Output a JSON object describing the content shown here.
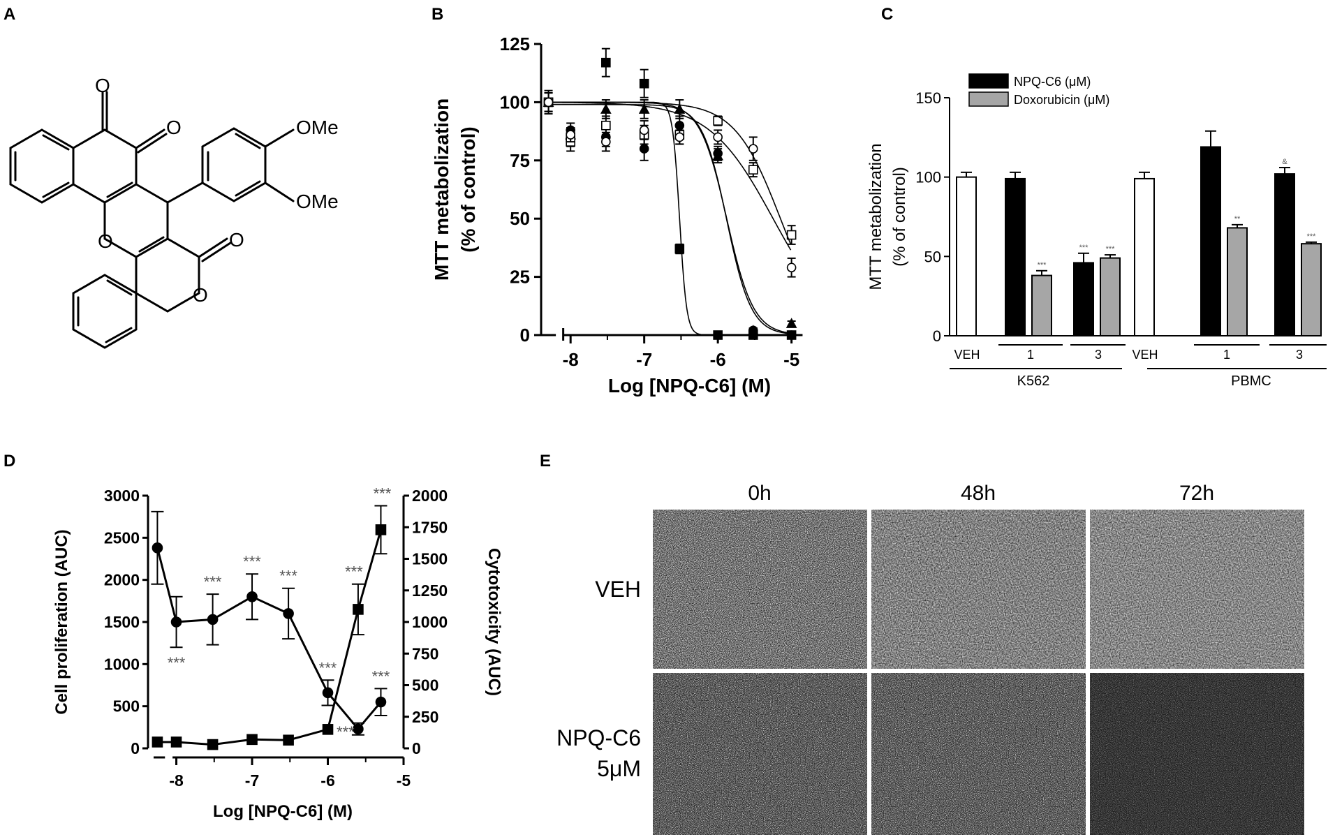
{
  "panels": {
    "A": {
      "letter": "A",
      "molecule": {
        "labels": [
          "O",
          "O",
          "OMe",
          "OMe",
          "O",
          "O",
          "O"
        ]
      }
    },
    "B": {
      "letter": "B"
    },
    "C": {
      "letter": "C"
    },
    "D": {
      "letter": "D"
    },
    "E": {
      "letter": "E",
      "time_labels": [
        "0h",
        "48h",
        "72h"
      ],
      "row_labels": [
        [
          "VEH"
        ],
        [
          "NPQ-C6",
          "5μM"
        ]
      ]
    }
  },
  "chart_data": [
    {
      "panel": "B",
      "type": "scatter",
      "xlabel": "Log [NPQ-C6] (M)",
      "ylabel": [
        "MTT metabolization",
        "(% of control)"
      ],
      "xlim": [
        -8.4,
        -4.75
      ],
      "ylim": [
        0,
        125
      ],
      "xticks": [
        -8,
        -7,
        -6,
        -5
      ],
      "yticks": [
        0,
        25,
        50,
        75,
        100,
        125
      ],
      "x": [
        -8.3,
        -8.0,
        -7.52,
        -7.0,
        -6.52,
        -6.0,
        -5.52,
        -5.0
      ],
      "series": [
        {
          "marker": "filled-square",
          "values": [
            100,
            85,
            117,
            108,
            37,
            0,
            0,
            0
          ],
          "errors": [
            5,
            4,
            6,
            6,
            2,
            0,
            0,
            0
          ],
          "ic50_log": -6.52,
          "top": 100,
          "hill": 9
        },
        {
          "marker": "filled-circle",
          "values": [
            100,
            88,
            85,
            80,
            90,
            78,
            2,
            0
          ],
          "errors": [
            4,
            3,
            4,
            5,
            4,
            3,
            1,
            0
          ],
          "ic50_log": -5.88,
          "top": 100,
          "hill": 2.4
        },
        {
          "marker": "filled-triangle",
          "values": [
            100,
            86,
            97,
            97,
            97,
            77,
            2,
            5
          ],
          "errors": [
            4,
            3,
            4,
            4,
            4,
            3,
            1,
            1
          ],
          "ic50_log": -5.88,
          "top": 99,
          "hill": 2.6
        },
        {
          "marker": "open-square",
          "values": [
            100,
            83,
            90,
            86,
            86,
            92,
            71,
            43
          ],
          "errors": [
            4,
            4,
            4,
            4,
            4,
            2,
            3,
            4
          ],
          "ic50_log": -5.25,
          "top": 100,
          "hill": 1.0
        },
        {
          "marker": "open-circle",
          "values": [
            100,
            86,
            83,
            88,
            85,
            85,
            80,
            29
          ],
          "errors": [
            4,
            3,
            4,
            4,
            3,
            3,
            5,
            4
          ],
          "ic50_log": -5.15,
          "top": 100,
          "hill": 1.4
        }
      ]
    },
    {
      "panel": "C",
      "type": "bar",
      "ylabel": [
        "MTT metabolization",
        "(% of control)"
      ],
      "ylim": [
        0,
        150
      ],
      "yticks": [
        0,
        50,
        100,
        150
      ],
      "legend": [
        {
          "name": "NPQ-C6 (μM)",
          "color": "#000000"
        },
        {
          "name": "Doxorubicin (μM)",
          "color": "#a6a6a6"
        }
      ],
      "bars": [
        {
          "kind": "veh",
          "value": 100,
          "error": 3,
          "sig": ""
        },
        {
          "kind": "npq",
          "value": 99,
          "error": 4,
          "sig": ""
        },
        {
          "kind": "dox",
          "value": 38,
          "error": 3,
          "sig": "***"
        },
        {
          "kind": "npq",
          "value": 46,
          "error": 6,
          "sig": "***"
        },
        {
          "kind": "dox",
          "value": 49,
          "error": 2,
          "sig": "***"
        },
        {
          "kind": "veh",
          "value": 99,
          "error": 4,
          "sig": ""
        },
        {
          "kind": "npq",
          "value": 119,
          "error": 10,
          "sig": ""
        },
        {
          "kind": "dox",
          "value": 68,
          "error": 2,
          "sig": "**"
        },
        {
          "kind": "npq",
          "value": 102,
          "error": 4,
          "sig": "&"
        },
        {
          "kind": "dox",
          "value": 58,
          "error": 1,
          "sig": "***"
        }
      ],
      "group_labels": [
        "VEH",
        "1",
        "3",
        "VEH",
        "1",
        "3"
      ],
      "cell_labels": [
        "K562",
        "PBMC"
      ]
    },
    {
      "panel": "D",
      "type": "line",
      "xlabel": "Log [NPQ-C6] (M)",
      "ylabel": "Cell proliferation (AUC)",
      "y2label": "Cytotoxicity (AUC)",
      "xlim": [
        -8.35,
        -5.0
      ],
      "ylim": [
        0,
        3000
      ],
      "y2lim": [
        0,
        2000
      ],
      "xticks": [
        -8,
        -7,
        -6,
        -5
      ],
      "yticks": [
        0,
        500,
        1000,
        1500,
        2000,
        2500,
        3000
      ],
      "y2ticks": [
        0,
        250,
        500,
        750,
        1000,
        1250,
        1500,
        1750,
        2000
      ],
      "x": [
        -8.25,
        -8.0,
        -7.52,
        -7.0,
        -6.52,
        -6.0,
        -5.6,
        -5.3
      ],
      "proliferation": {
        "marker": "circle",
        "values": [
          2380,
          1500,
          1530,
          1800,
          1600,
          660,
          230,
          550
        ],
        "errors": [
          430,
          300,
          300,
          270,
          300,
          150,
          70,
          160
        ],
        "sig": [
          "",
          "***",
          "***",
          "***",
          "***",
          "***",
          "***",
          "***"
        ]
      },
      "cytotoxicity": {
        "marker": "square",
        "values": [
          50,
          50,
          30,
          70,
          65,
          150,
          1100,
          1730
        ],
        "errors": [
          0,
          0,
          0,
          0,
          0,
          0,
          200,
          190
        ],
        "sig": [
          "",
          "",
          "",
          "",
          "",
          "",
          "***",
          "***"
        ]
      }
    }
  ]
}
